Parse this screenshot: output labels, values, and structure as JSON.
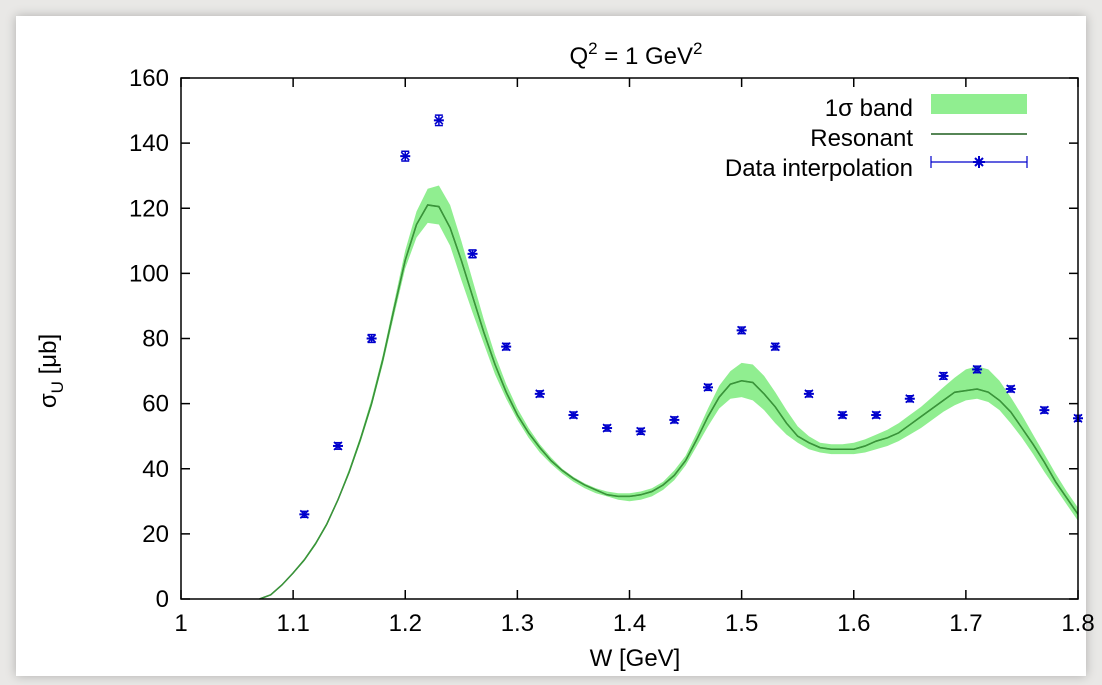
{
  "chart_data": {
    "type": "line",
    "title": {
      "base": "Q",
      "sup1": "2",
      "mid": " = 1 GeV",
      "sup2": "2"
    },
    "xlabel": "W [GeV]",
    "ylabel": {
      "sym": "σ",
      "sub": "U",
      "rest": " [μb]"
    },
    "xlim": [
      1.0,
      1.8
    ],
    "ylim": [
      0,
      160
    ],
    "xticks": [
      "1",
      "1.1",
      "1.2",
      "1.3",
      "1.4",
      "1.5",
      "1.6",
      "1.7",
      "1.8"
    ],
    "yticks": [
      "0",
      "20",
      "40",
      "60",
      "80",
      "100",
      "120",
      "140",
      "160"
    ],
    "grid": false,
    "legend_position": "top-right",
    "series": [
      {
        "name": "1σ band",
        "kind": "band",
        "color": "#90ee90",
        "x": [
          1.07,
          1.08,
          1.09,
          1.1,
          1.11,
          1.12,
          1.13,
          1.14,
          1.15,
          1.16,
          1.17,
          1.18,
          1.19,
          1.2,
          1.21,
          1.22,
          1.23,
          1.24,
          1.25,
          1.26,
          1.27,
          1.28,
          1.29,
          1.3,
          1.31,
          1.32,
          1.33,
          1.34,
          1.35,
          1.36,
          1.37,
          1.38,
          1.39,
          1.4,
          1.41,
          1.42,
          1.43,
          1.44,
          1.45,
          1.46,
          1.47,
          1.48,
          1.49,
          1.5,
          1.51,
          1.52,
          1.53,
          1.54,
          1.55,
          1.56,
          1.57,
          1.58,
          1.59,
          1.6,
          1.61,
          1.62,
          1.63,
          1.64,
          1.65,
          1.66,
          1.67,
          1.68,
          1.69,
          1.7,
          1.71,
          1.72,
          1.73,
          1.74,
          1.75,
          1.76,
          1.77,
          1.78,
          1.79,
          1.8
        ],
        "low": [
          0,
          1.2,
          4.1,
          7.7,
          11.6,
          16.5,
          22.5,
          30,
          38.5,
          48,
          59,
          72,
          87,
          101.5,
          111,
          115.5,
          115,
          108.5,
          98,
          88,
          78.5,
          69,
          61.5,
          55,
          49.5,
          45,
          41.5,
          38.5,
          36,
          34,
          32.5,
          31.5,
          30.5,
          30,
          30.5,
          31.5,
          33.5,
          36.5,
          41,
          47,
          53,
          58.5,
          61.5,
          62,
          61,
          58,
          54,
          50.5,
          48,
          46,
          45,
          44.5,
          44.5,
          44.5,
          45,
          46,
          47,
          48.5,
          50.5,
          52.5,
          55,
          57.5,
          59.5,
          61,
          61.5,
          60.5,
          58,
          54,
          49.5,
          44.5,
          39,
          34,
          29,
          24
        ],
        "high": [
          0,
          1.4,
          4.5,
          8.3,
          12.4,
          17.5,
          23.5,
          31,
          40,
          50,
          61.5,
          75,
          91,
          107,
          119,
          126,
          127,
          121,
          110,
          98,
          86,
          75,
          66,
          58.5,
          52.5,
          47.5,
          43.5,
          40,
          37.5,
          35.5,
          34,
          33,
          32.5,
          32.5,
          33,
          34,
          36,
          39.5,
          44,
          51,
          58.5,
          65.5,
          70,
          72.5,
          72,
          68.5,
          63.5,
          58,
          53,
          50,
          48,
          47.5,
          47.5,
          48,
          49,
          50.5,
          52,
          54,
          56.5,
          59,
          62,
          65,
          68,
          70.5,
          71.5,
          70.5,
          67,
          62,
          56.5,
          50.5,
          44.5,
          38.5,
          33,
          28
        ]
      },
      {
        "name": "Resonant",
        "kind": "line",
        "color": "#1f5f1f",
        "x": [
          1.07,
          1.08,
          1.09,
          1.1,
          1.11,
          1.12,
          1.13,
          1.14,
          1.15,
          1.16,
          1.17,
          1.18,
          1.19,
          1.2,
          1.21,
          1.22,
          1.23,
          1.24,
          1.25,
          1.26,
          1.27,
          1.28,
          1.29,
          1.3,
          1.31,
          1.32,
          1.33,
          1.34,
          1.35,
          1.36,
          1.37,
          1.38,
          1.39,
          1.4,
          1.41,
          1.42,
          1.43,
          1.44,
          1.45,
          1.46,
          1.47,
          1.48,
          1.49,
          1.5,
          1.51,
          1.52,
          1.53,
          1.54,
          1.55,
          1.56,
          1.57,
          1.58,
          1.59,
          1.6,
          1.61,
          1.62,
          1.63,
          1.64,
          1.65,
          1.66,
          1.67,
          1.68,
          1.69,
          1.7,
          1.71,
          1.72,
          1.73,
          1.74,
          1.75,
          1.76,
          1.77,
          1.78,
          1.79,
          1.8
        ],
        "y": [
          0,
          1.3,
          4.3,
          8,
          12,
          17,
          23,
          30.5,
          39,
          49,
          60,
          73.5,
          89,
          104,
          115,
          121,
          120.5,
          114,
          104,
          93,
          82,
          72,
          63.5,
          56.5,
          51,
          46.5,
          42.5,
          39.5,
          37,
          35,
          33.5,
          32,
          31.5,
          31.5,
          32,
          33,
          35,
          38,
          42.5,
          49,
          56,
          62,
          66,
          67,
          66.5,
          63,
          59,
          54,
          50,
          48,
          46.5,
          46,
          46,
          46,
          47,
          48.5,
          49.5,
          51,
          53.5,
          56,
          58.5,
          61,
          63.5,
          64,
          64.5,
          63.5,
          61,
          57.5,
          52.5,
          47.5,
          42,
          36,
          31,
          26
        ]
      },
      {
        "name": "Data interpolation",
        "kind": "points",
        "color": "#0000cc",
        "x": [
          1.11,
          1.14,
          1.17,
          1.2,
          1.23,
          1.26,
          1.29,
          1.32,
          1.35,
          1.38,
          1.41,
          1.44,
          1.47,
          1.5,
          1.53,
          1.56,
          1.59,
          1.62,
          1.65,
          1.68,
          1.71,
          1.74,
          1.77,
          1.8
        ],
        "y": [
          26,
          47,
          80,
          136,
          147,
          106,
          77.5,
          63,
          56.5,
          52.5,
          51.5,
          55,
          65,
          82.5,
          77.5,
          63,
          56.5,
          56.5,
          61.5,
          68.5,
          70.5,
          64.5,
          58,
          55.5
        ],
        "err": [
          0.8,
          1,
          1.2,
          1.5,
          1.6,
          1.2,
          1,
          0.9,
          0.8,
          0.8,
          0.8,
          0.8,
          0.9,
          1,
          1,
          0.9,
          0.8,
          0.8,
          0.9,
          1,
          1,
          0.9,
          0.8,
          0.8
        ]
      }
    ]
  }
}
